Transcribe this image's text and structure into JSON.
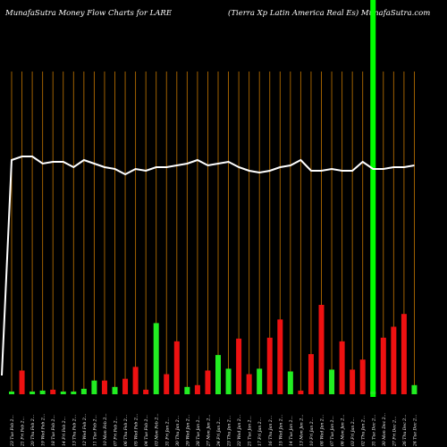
{
  "header": {
    "left": "MunafaSutra  Money Flow  Charts for LARE",
    "right": "(Tierra  Xp Latin  America  Real Es) MunafaSutra.com"
  },
  "colors": {
    "background": "#000000",
    "up": "#22ee22",
    "down": "#ee1111",
    "line": "#ffffff",
    "gridline": "#b06a00",
    "highlight": "#00ff00"
  },
  "chart_data": {
    "type": "bar",
    "title": "MunafaSutra  Money Flow  Charts for LARE",
    "subtitle": "(Tierra  Xp Latin  America  Real Es) MunafaSutra.com",
    "grid": true,
    "highlight_index": 35,
    "categories": [
      "23 Tue Feb 2...",
      "21 Fri Feb 2...",
      "20 Thu Feb 2...",
      "19 Wed Feb 2...",
      "18 Tue Feb 2...",
      "14 Fri Feb 2...",
      "13 Thu Feb 2...",
      "12 Wed Feb 2...",
      "11 Tue Feb 2...",
      "10 Mon Feb 2...",
      "07 Fri Feb 2...",
      "06 Thu Feb 2...",
      "05 Wed Feb 2...",
      "04 Tue Feb 2...",
      "03 Mon Feb 2...",
      "31 Fri Jan 2...",
      "30 Thu Jan 2...",
      "29 Wed Jan 2...",
      "28 Tue Jan 2...",
      "27 Mon Jan 2...",
      "24 Fri Jan 2...",
      "23 Thu Jan 2...",
      "22 Wed Jan 2...",
      "21 Tue Jan 2...",
      "17 Fri Jan 2...",
      "16 Thu Jan 2...",
      "15 Wed Jan 2...",
      "14 Tue Jan 2...",
      "13 Mon Jan 2...",
      "10 Fri Jan 2...",
      "08 Wed Jan 2...",
      "07 Tue Jan 2...",
      "06 Mon Jan 2...",
      "03 Fri Jan 2...",
      "02 Thu Jan 2...",
      "31 Tue Dec 2...",
      "30 Mon Dec 2...",
      "27 Fri Dec 2...",
      "26 Thu Dec 2...",
      "24 Tue Dec 2..."
    ],
    "series": [
      {
        "role": "money_flow_volume",
        "values": [
          3,
          26,
          3,
          4,
          5,
          3,
          3,
          6,
          15,
          15,
          8,
          17,
          30,
          5,
          78,
          22,
          58,
          8,
          10,
          26,
          43,
          28,
          61,
          22,
          28,
          62,
          82,
          25,
          4,
          44,
          98,
          27,
          58,
          27,
          38,
          3,
          62,
          74,
          88,
          10
        ],
        "directions": [
          "up",
          "down",
          "up",
          "up",
          "down",
          "up",
          "up",
          "up",
          "up",
          "down",
          "up",
          "down",
          "down",
          "down",
          "up",
          "down",
          "down",
          "up",
          "down",
          "down",
          "up",
          "up",
          "down",
          "down",
          "up",
          "down",
          "down",
          "up",
          "down",
          "down",
          "down",
          "up",
          "down",
          "down",
          "down",
          "up",
          "down",
          "down",
          "down",
          "up"
        ]
      },
      {
        "role": "price_line",
        "values": [
          98,
          100,
          100,
          96,
          97,
          97,
          94,
          98,
          96,
          94,
          93,
          90,
          93,
          92,
          94,
          94,
          95,
          96,
          98,
          95,
          96,
          97,
          94,
          92,
          91,
          92,
          94,
          95,
          98,
          92,
          92,
          93,
          92,
          92,
          97,
          93,
          93,
          94,
          94,
          95
        ]
      }
    ]
  }
}
